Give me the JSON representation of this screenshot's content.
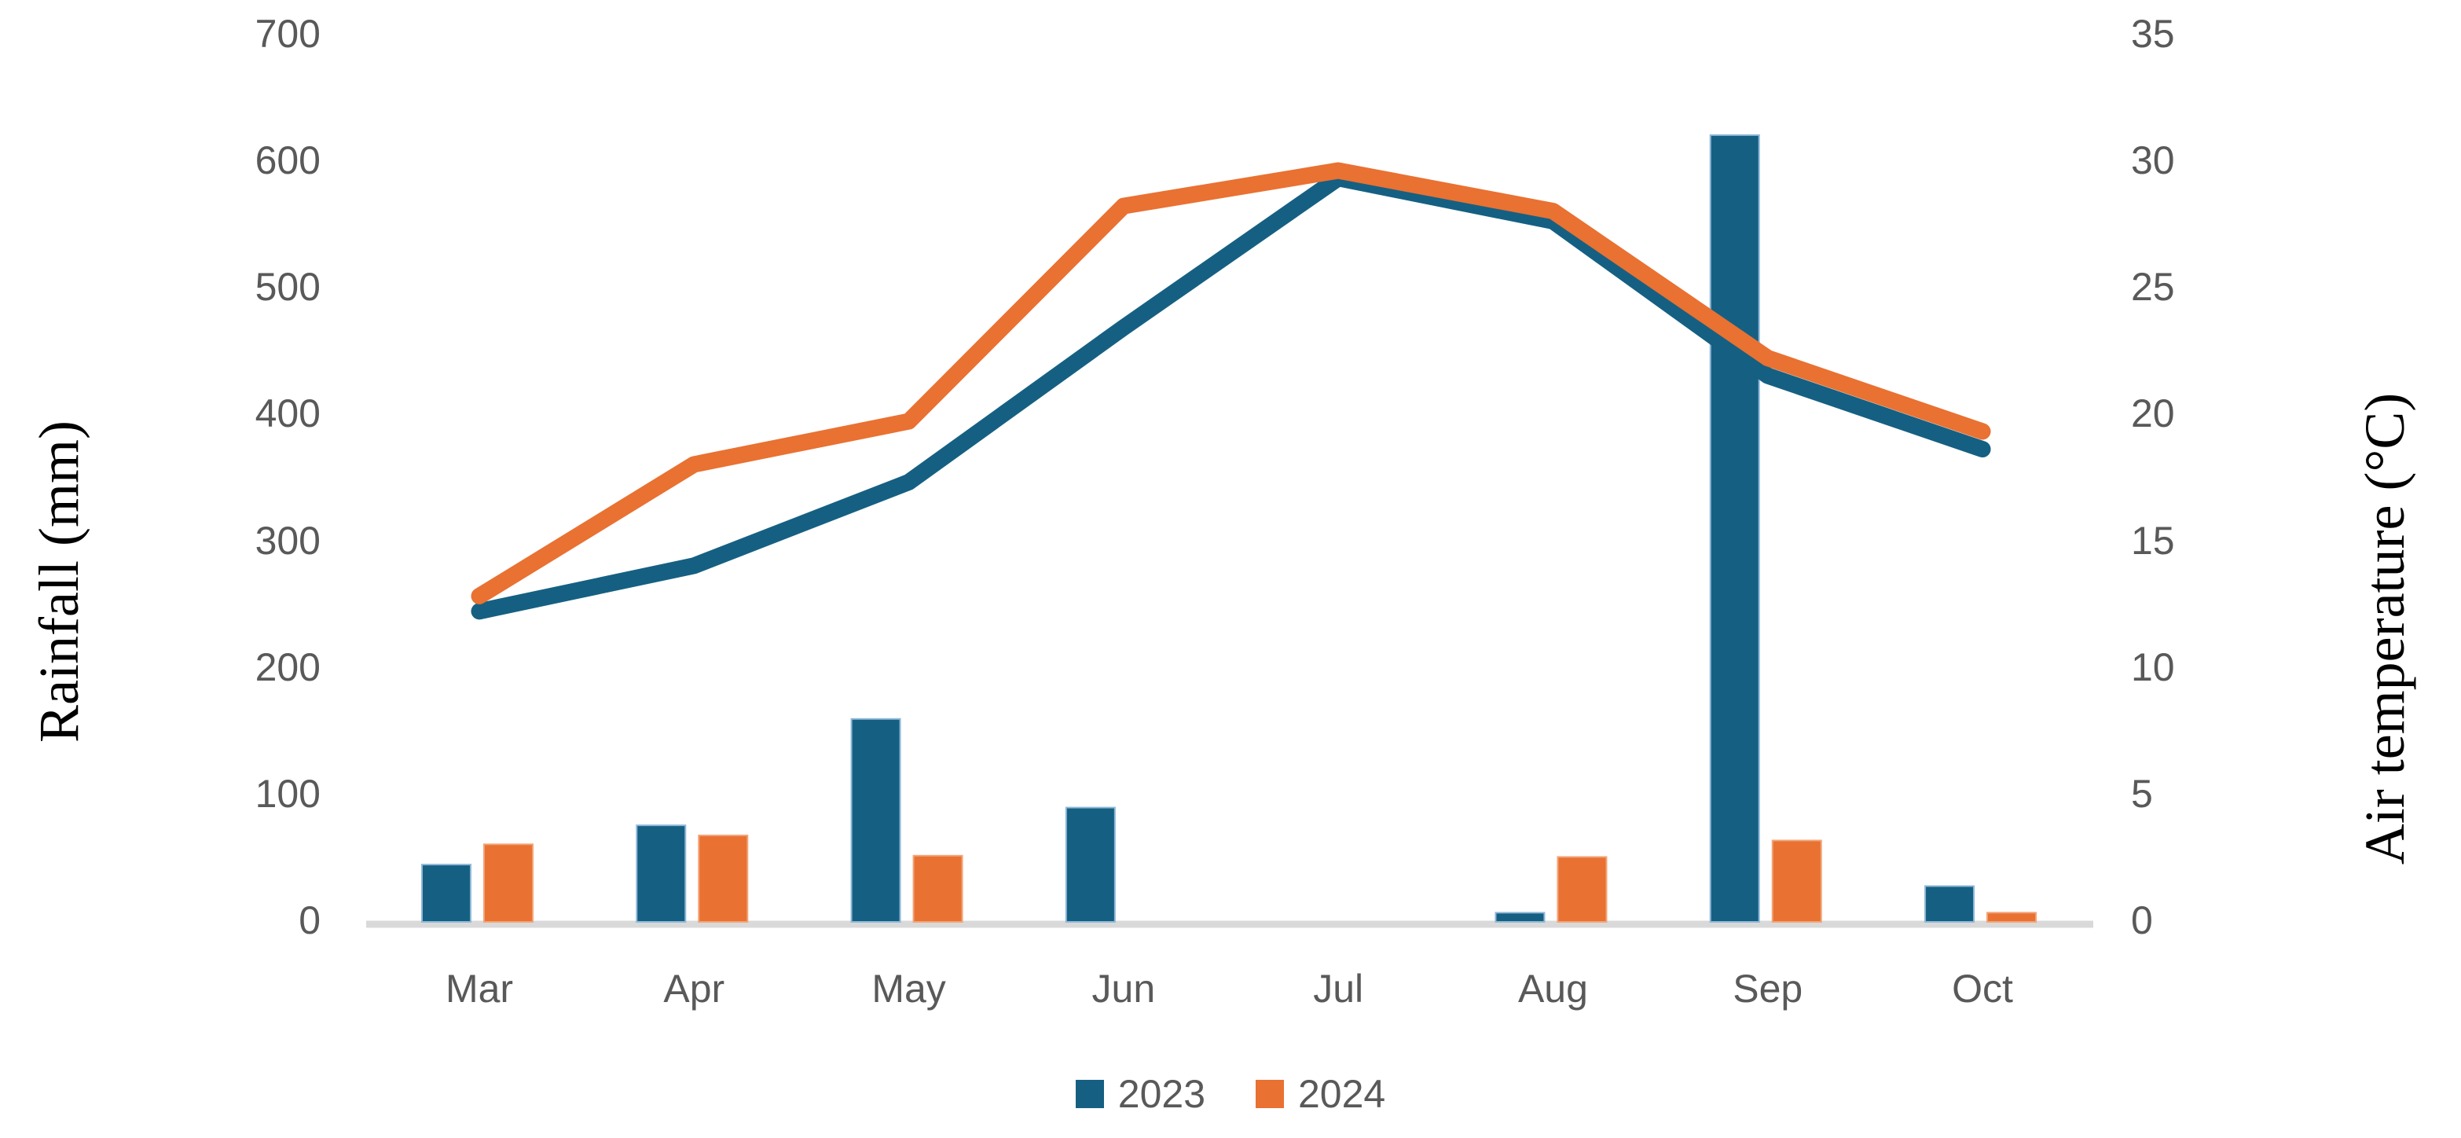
{
  "chart_data": {
    "type": "combo",
    "subtype": "clustered-bars-plus-lines-dual-axis",
    "categories": [
      "Mar",
      "Apr",
      "May",
      "Jun",
      "Jul",
      "Aug",
      "Sep",
      "Oct"
    ],
    "bar_series": [
      {
        "name": "2023",
        "unit": "mm",
        "color": "#156082",
        "edge_color": "#8FB8D8",
        "values": [
          44,
          75,
          159,
          89,
          0,
          6,
          620,
          27
        ]
      },
      {
        "name": "2024",
        "unit": "mm",
        "color": "#E97132",
        "edge_color": "#F2A477",
        "values": [
          60,
          67,
          51,
          0,
          0,
          50,
          63,
          6
        ]
      }
    ],
    "line_series": [
      {
        "name": "2023",
        "unit": "degC",
        "color": "#156082",
        "values": [
          12.2,
          14.0,
          17.3,
          23.4,
          29.3,
          27.6,
          21.5,
          18.6
        ]
      },
      {
        "name": "2024",
        "unit": "degC",
        "color": "#E97132",
        "values": [
          12.8,
          18.0,
          19.7,
          28.2,
          29.6,
          28.0,
          22.2,
          19.3
        ]
      }
    ],
    "left_axis": {
      "label": "Rainfall (mm)",
      "min": 0,
      "max": 700,
      "step": 100,
      "ticks": [
        0,
        100,
        200,
        300,
        400,
        500,
        600,
        700
      ]
    },
    "right_axis": {
      "label": "Air temperature (°C)",
      "min": 0,
      "max": 35,
      "step": 5,
      "ticks": [
        0,
        5,
        10,
        15,
        20,
        25,
        30,
        35
      ]
    },
    "legend": [
      {
        "label": "2023",
        "color": "#156082"
      },
      {
        "label": "2024",
        "color": "#E97132"
      }
    ],
    "legend_position": "bottom",
    "grid": "off",
    "styles": {
      "axis_line_color": "#D9D9D9",
      "tick_text_color": "#595959",
      "axis_title_color": "#000000",
      "background": "#FFFFFF"
    }
  }
}
